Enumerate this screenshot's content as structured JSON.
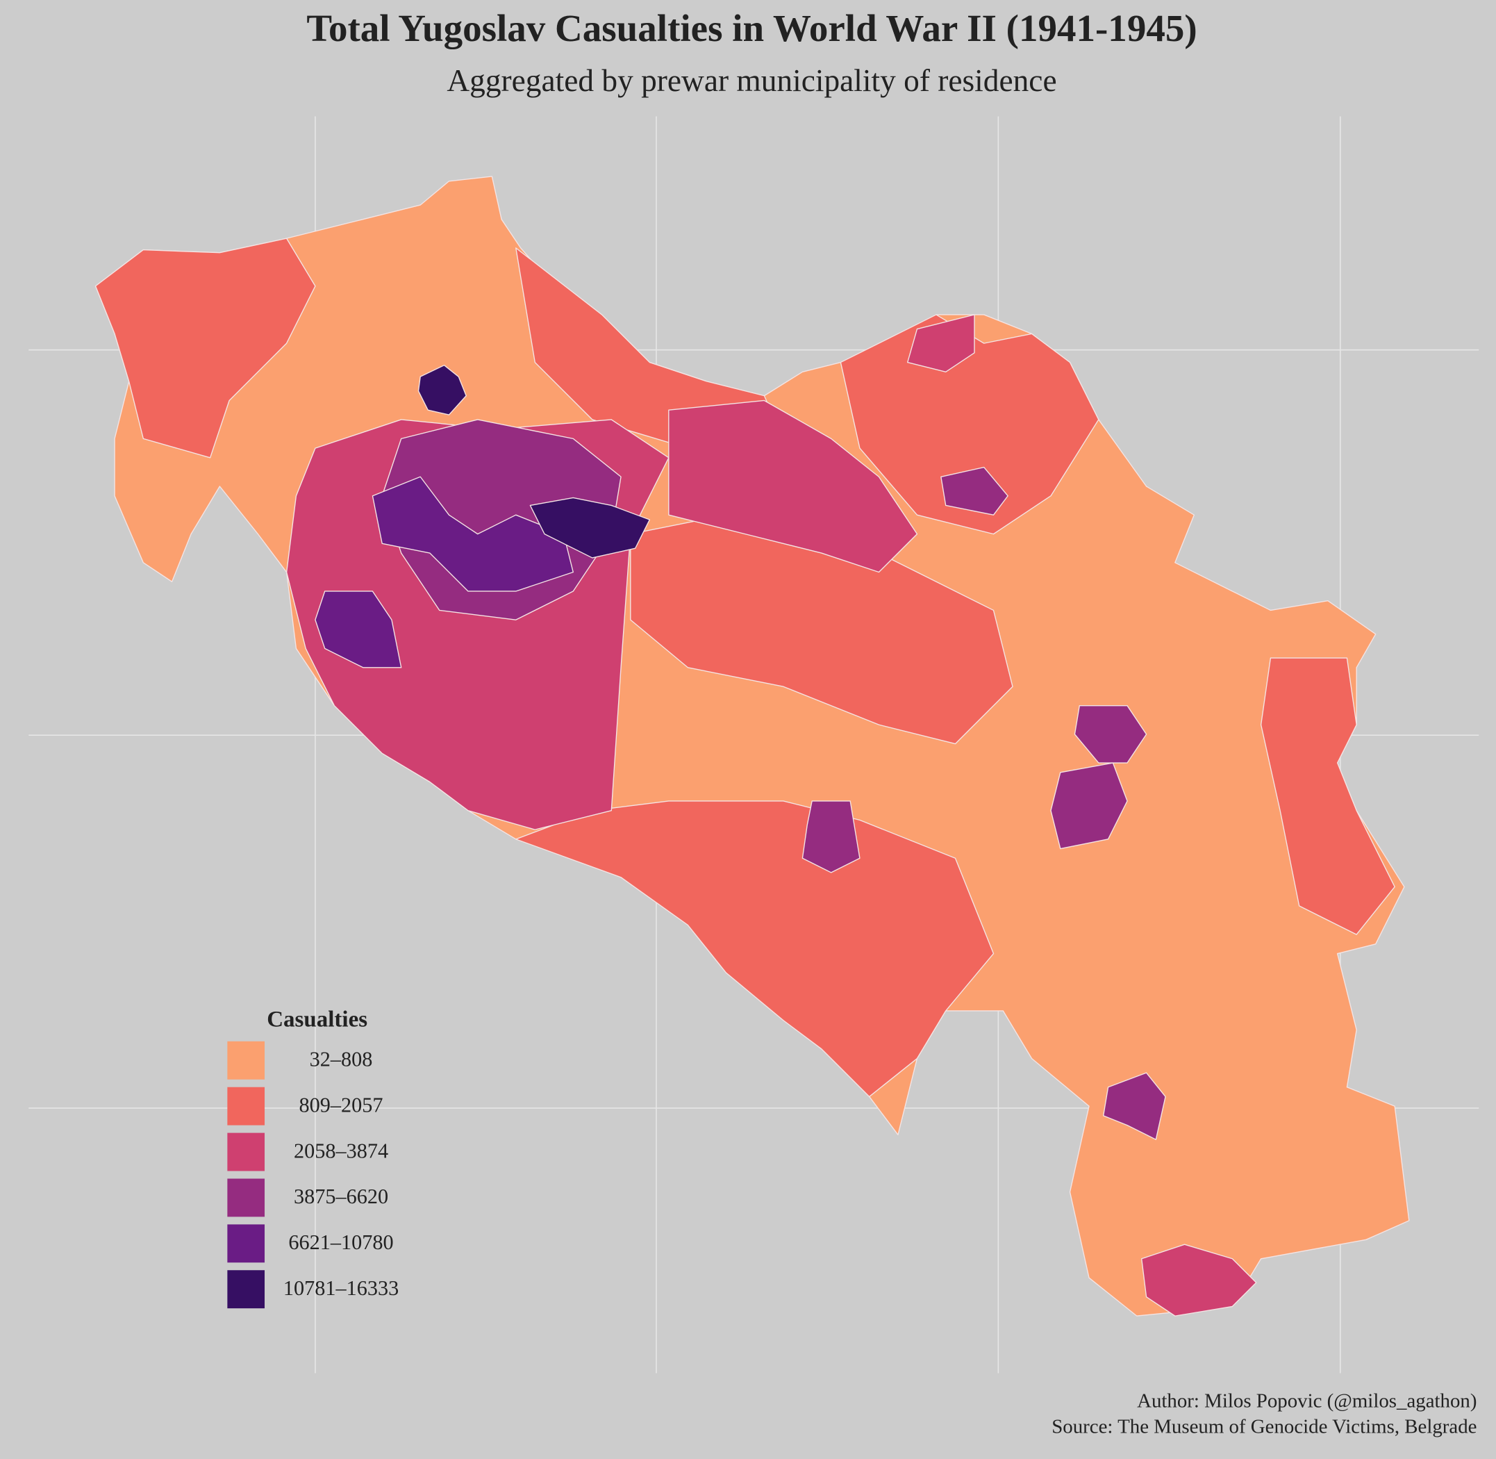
{
  "title": "Total Yugoslav Casualties in World War II (1941-1945)",
  "subtitle": "Aggregated by prewar municipality of residence",
  "legend": {
    "title": "Casualties",
    "items": [
      {
        "label": "32–808",
        "color": "#fba06f"
      },
      {
        "label": "809–2057",
        "color": "#f1665d"
      },
      {
        "label": "2058–3874",
        "color": "#cf4070"
      },
      {
        "label": "3875–6620",
        "color": "#952c80"
      },
      {
        "label": "6621–10780",
        "color": "#6a1c85"
      },
      {
        "label": "10781–16333",
        "color": "#360f63"
      }
    ]
  },
  "caption": [
    "Author: Milos Popovic (@milos_agathon)",
    "Source: The Museum of Genocide Victims, Belgrade"
  ]
}
